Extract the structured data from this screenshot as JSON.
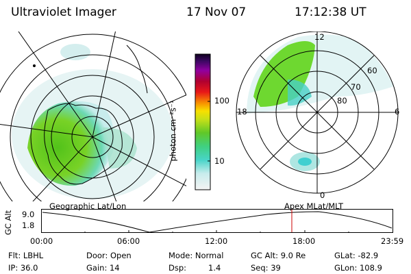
{
  "header": {
    "instrument": "Ultraviolet Imager",
    "date": "17 Nov 07",
    "time": "17:12:38 UT"
  },
  "colorbar": {
    "unit": "photon cm⁻²s⁻¹",
    "ticks": [
      "100",
      "10"
    ]
  },
  "right_plot": {
    "mlt_labels": [
      "12",
      "18",
      "6",
      "0"
    ],
    "mlat_labels": [
      "60",
      "70",
      "80"
    ]
  },
  "left_plot": {
    "label": "Geographic Lat/Lon"
  },
  "orbit_plot": {
    "right_label": "Apex MLat/MLT",
    "y_title": "GC Alt",
    "y_ticks": [
      "9.0",
      "1.8"
    ],
    "x_ticks": [
      "00:00",
      "06:00",
      "12:00",
      "18:00",
      "23:59"
    ],
    "marker_color": "#cc0000",
    "marker_time": "17:12:38"
  },
  "info": {
    "flt": "Flt: LBHL",
    "ip": "IP: 36.0",
    "door": "Door: Open",
    "gain": "Gain: 14",
    "mode": "Mode: Normal",
    "dsp_label": "Dsp:",
    "dsp_value": "1.4",
    "gc_alt": "GC Alt: 9.0 Re",
    "seq": "Seq: 39",
    "glat": "GLat: -82.9",
    "glon": "GLon: 108.9"
  }
}
